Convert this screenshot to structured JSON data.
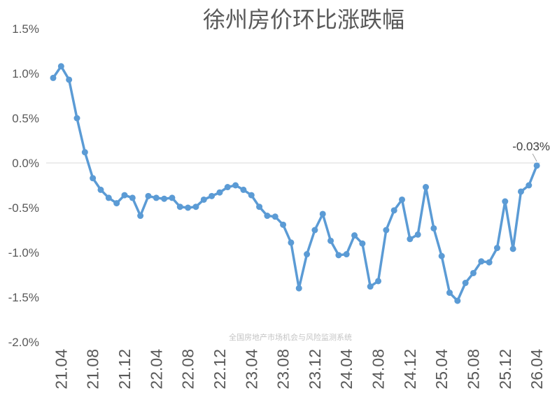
{
  "chart_data": {
    "type": "line",
    "title": "徐州房价环比涨跌幅",
    "xlabel": "",
    "ylabel": "",
    "ylim": [
      -2.0,
      1.5
    ],
    "y_ticks": [
      "1.5%",
      "1.0%",
      "0.5%",
      "0.0%",
      "-0.5%",
      "-1.0%",
      "-1.5%",
      "-2.0%"
    ],
    "x_ticks": [
      "21.04",
      "21.08",
      "21.12",
      "22.04",
      "22.08",
      "22.12",
      "23.04",
      "23.08",
      "23.12",
      "24.04",
      "24.08",
      "24.12",
      "25.04",
      "25.08",
      "25.12",
      "26.04"
    ],
    "grid": false,
    "legend": "none",
    "line_color": "#5b9bd5",
    "x": [
      "21.03",
      "21.04",
      "21.05",
      "21.06",
      "21.07",
      "21.08",
      "21.09",
      "21.10",
      "21.11",
      "21.12",
      "22.01",
      "22.02",
      "22.03",
      "22.04",
      "22.05",
      "22.06",
      "22.07",
      "22.08",
      "22.09",
      "22.10",
      "22.11",
      "22.12",
      "23.01",
      "23.02",
      "23.03",
      "23.04",
      "23.05",
      "23.06",
      "23.07",
      "23.08",
      "23.09",
      "23.10",
      "23.11",
      "23.12",
      "24.01",
      "24.02",
      "24.03",
      "24.04",
      "24.05",
      "24.06",
      "24.07",
      "24.08",
      "24.09",
      "24.10",
      "24.11",
      "24.12",
      "25.01",
      "25.02",
      "25.03",
      "25.04",
      "25.05",
      "25.06",
      "25.07",
      "25.08",
      "25.09",
      "25.10",
      "25.11",
      "25.12",
      "26.01",
      "26.02",
      "26.03",
      "26.04"
    ],
    "series": [
      {
        "values": [
          0.95,
          1.08,
          0.93,
          0.5,
          0.12,
          -0.17,
          -0.3,
          -0.39,
          -0.45,
          -0.36,
          -0.39,
          -0.59,
          -0.37,
          -0.39,
          -0.4,
          -0.39,
          -0.49,
          -0.5,
          -0.49,
          -0.41,
          -0.37,
          -0.33,
          -0.27,
          -0.25,
          -0.3,
          -0.36,
          -0.49,
          -0.59,
          -0.6,
          -0.69,
          -0.89,
          -1.4,
          -1.02,
          -0.75,
          -0.57,
          -0.87,
          -1.03,
          -1.02,
          -0.81,
          -0.9,
          -1.38,
          -1.32,
          -0.75,
          -0.53,
          -0.41,
          -0.85,
          -0.8,
          -0.27,
          -0.73,
          -1.04,
          -1.45,
          -1.54,
          -1.34,
          -1.23,
          -1.1,
          -1.11,
          -0.95,
          -0.43,
          -0.96,
          -0.32,
          -0.25,
          -0.03
        ]
      }
    ],
    "annotation": "-0.03%",
    "watermark": "全国房地产市场机会与风险监测系统"
  }
}
